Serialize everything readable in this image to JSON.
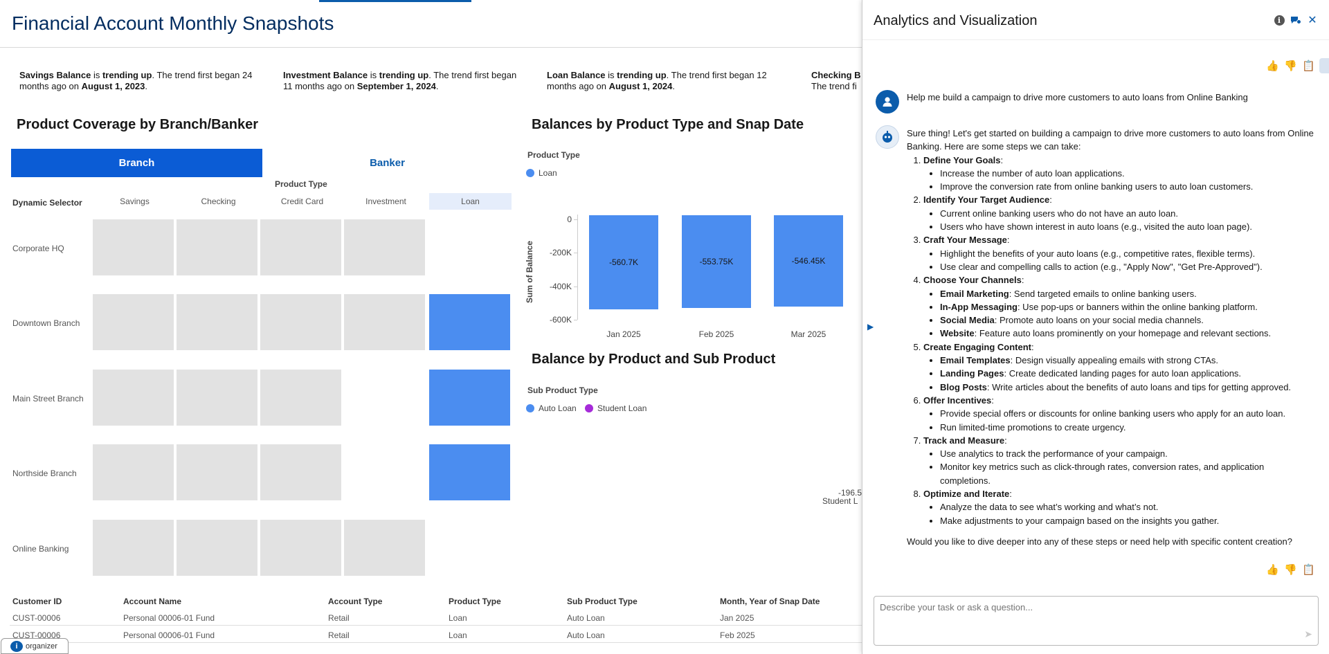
{
  "dashboard": {
    "title": "Financial Account Monthly Snapshots",
    "insights": [
      {
        "metric": "Savings Balance",
        "is": " is ",
        "trend": "trending up",
        "text": ". The trend first began 24 months ago on ",
        "date": "August 1, 2023",
        "end": "."
      },
      {
        "metric": "Investment Balance",
        "is": " is ",
        "trend": "trending up",
        "text": ". The trend first began 11 months ago on ",
        "date": "September 1, 2024",
        "end": "."
      },
      {
        "metric": "Loan Balance",
        "is": " is ",
        "trend": "trending up",
        "text": ". The trend first began 12 months ago on ",
        "date": "August 1, 2024",
        "end": "."
      },
      {
        "metric": "Checking B",
        "is": "",
        "trend": "",
        "text": "The trend fi",
        "date": "",
        "end": ""
      }
    ],
    "coverage": {
      "title": "Product Coverage by Branch/Banker",
      "toggle_branch": "Branch",
      "toggle_banker": "Banker",
      "product_type_label": "Product Type",
      "dynamic_selector_label": "Dynamic Selector",
      "columns": [
        "Savings",
        "Checking",
        "Credit Card",
        "Investment",
        "Loan"
      ],
      "rows": [
        "Corporate HQ",
        "Downtown Branch",
        "Main Street Branch",
        "Northside Branch",
        "Online Banking"
      ]
    },
    "balances_chart": {
      "title": "Balances by Product Type and Snap Date",
      "legend_title": "Product Type",
      "legend": [
        {
          "name": "Loan",
          "color": "#4b8df0"
        }
      ]
    },
    "sub_product_chart": {
      "title": "Balance by Product and Sub Product",
      "legend_title": "Sub Product Type",
      "legend": [
        {
          "name": "Auto Loan",
          "color": "#4b8df0"
        },
        {
          "name": "Student Loan",
          "color": "#a62bd9"
        }
      ],
      "partial_value": "-196.5",
      "partial_label": "Student L"
    },
    "table": {
      "headers": [
        "Customer ID",
        "Account Name",
        "Account Type",
        "Product Type",
        "Sub Product Type",
        "Month, Year of Snap Date"
      ],
      "rows": [
        [
          "CUST-00006",
          "Personal 00006-01 Fund",
          "Retail",
          "Loan",
          "Auto Loan",
          "Jan 2025"
        ],
        [
          "CUST-00006",
          "Personal 00006-01 Fund",
          "Retail",
          "Loan",
          "Auto Loan",
          "Feb 2025"
        ]
      ]
    },
    "organizer_label": "organizer"
  },
  "chart_data": {
    "type": "bar",
    "title": "Balances by Product Type and Snap Date",
    "xlabel": "",
    "ylabel": "Sum of Balance",
    "categories": [
      "Jan 2025",
      "Feb 2025",
      "Mar 2025"
    ],
    "series": [
      {
        "name": "Loan",
        "values": [
          -560700,
          -553750,
          -546450
        ]
      }
    ],
    "data_labels": [
      "-560.7K",
      "-553.75K",
      "-546.45K"
    ],
    "yticks": [
      "0",
      "-200K",
      "-400K",
      "-600K"
    ],
    "ylim": [
      -600000,
      0
    ],
    "legend": "top-left"
  },
  "panel": {
    "title": "Analytics and Visualization",
    "user_message": "Help me build a campaign to drive more customers to auto loans from Online Banking",
    "assistant": {
      "intro": "Sure thing! Let's get started on building a campaign to drive more customers to auto loans from Online Banking. Here are some steps we can take:",
      "steps": [
        {
          "title": "Define Your Goals",
          "items": [
            {
              "b": "",
              "t": "Increase the number of auto loan applications."
            },
            {
              "b": "",
              "t": "Improve the conversion rate from online banking users to auto loan customers."
            }
          ]
        },
        {
          "title": "Identify Your Target Audience",
          "items": [
            {
              "b": "",
              "t": "Current online banking users who do not have an auto loan."
            },
            {
              "b": "",
              "t": "Users who have shown interest in auto loans (e.g., visited the auto loan page)."
            }
          ]
        },
        {
          "title": "Craft Your Message",
          "items": [
            {
              "b": "",
              "t": "Highlight the benefits of your auto loans (e.g., competitive rates, flexible terms)."
            },
            {
              "b": "",
              "t": "Use clear and compelling calls to action (e.g., \"Apply Now\", \"Get Pre-Approved\")."
            }
          ]
        },
        {
          "title": "Choose Your Channels",
          "items": [
            {
              "b": "Email Marketing",
              "t": ": Send targeted emails to online banking users."
            },
            {
              "b": "In-App Messaging",
              "t": ": Use pop-ups or banners within the online banking platform."
            },
            {
              "b": "Social Media",
              "t": ": Promote auto loans on your social media channels."
            },
            {
              "b": "Website",
              "t": ": Feature auto loans prominently on your homepage and relevant sections."
            }
          ]
        },
        {
          "title": "Create Engaging Content",
          "items": [
            {
              "b": "Email Templates",
              "t": ": Design visually appealing emails with strong CTAs."
            },
            {
              "b": "Landing Pages",
              "t": ": Create dedicated landing pages for auto loan applications."
            },
            {
              "b": "Blog Posts",
              "t": ": Write articles about the benefits of auto loans and tips for getting approved."
            }
          ]
        },
        {
          "title": "Offer Incentives",
          "items": [
            {
              "b": "",
              "t": "Provide special offers or discounts for online banking users who apply for an auto loan."
            },
            {
              "b": "",
              "t": "Run limited-time promotions to create urgency."
            }
          ]
        },
        {
          "title": "Track and Measure",
          "items": [
            {
              "b": "",
              "t": "Use analytics to track the performance of your campaign."
            },
            {
              "b": "",
              "t": "Monitor key metrics such as click-through rates, conversion rates, and application completions."
            }
          ]
        },
        {
          "title": "Optimize and Iterate",
          "items": [
            {
              "b": "",
              "t": "Analyze the data to see what’s working and what’s not."
            },
            {
              "b": "",
              "t": "Make adjustments to your campaign based on the insights you gather."
            }
          ]
        }
      ],
      "closing": "Would you like to dive deeper into any of these steps or need help with specific content creation?"
    },
    "input_placeholder": "Describe your task or ask a question..."
  }
}
